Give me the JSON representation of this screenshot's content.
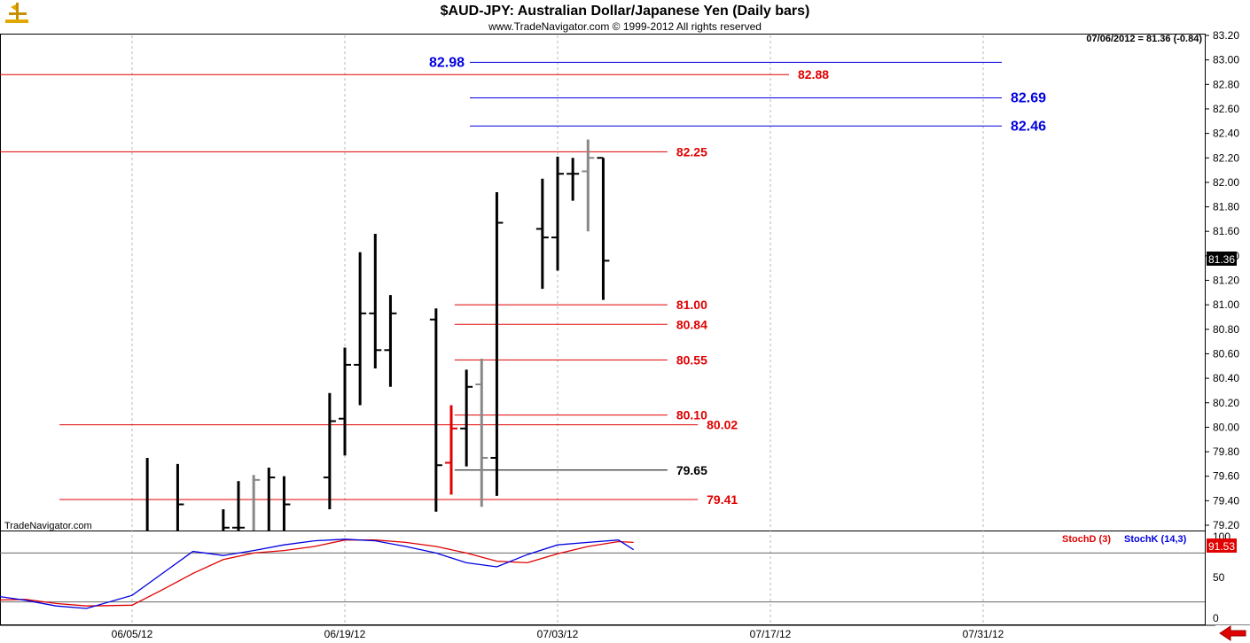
{
  "header": {
    "title": "$AUD-JPY:  Australian Dollar/Japanese Yen  (Daily bars)",
    "subtitle": "www.TradeNavigator.com © 1999-2012 All rights reserved",
    "last_quote": "07/06/2012 = 81.36 (-0.84)",
    "watermark": "TradeNavigator.com"
  },
  "colors": {
    "red": "#e00000",
    "blue": "#0000e0",
    "black": "#000000",
    "gray": "#888888",
    "grid": "#b8b8b8"
  },
  "icons": {
    "logo": "trading-post-icon",
    "scroll": "red-arrow-left-icon"
  },
  "chart_data": [
    {
      "type": "ohlc",
      "title": "$AUD-JPY:  Australian Dollar/Japanese Yen  (Daily bars)",
      "ylim": [
        79.1,
        83.25
      ],
      "y_ticks": [
        "83.20",
        "83.00",
        "82.80",
        "82.60",
        "82.40",
        "82.20",
        "82.00",
        "81.80",
        "81.60",
        "81.40",
        "81.20",
        "81.00",
        "80.80",
        "80.60",
        "80.40",
        "80.20",
        "80.00",
        "79.80",
        "79.60",
        "79.40",
        "79.20"
      ],
      "x_ticks": [
        "06/05/12",
        "06/19/12",
        "07/03/12",
        "07/17/12",
        "07/31/12"
      ],
      "last_price_label": "81.36",
      "bars": [
        {
          "date": "2012-06-06",
          "open": null,
          "high": 79.75,
          "low": 79.1,
          "close": null,
          "color": "black"
        },
        {
          "date": "2012-06-08",
          "open": null,
          "high": 79.7,
          "low": 79.1,
          "close": 79.37,
          "color": "black"
        },
        {
          "date": "2012-06-11",
          "open": null,
          "high": 79.33,
          "low": 79.1,
          "close": 79.18,
          "color": "black"
        },
        {
          "date": "2012-06-12",
          "open": 79.18,
          "high": 79.56,
          "low": 79.1,
          "close": 79.18,
          "color": "black"
        },
        {
          "date": "2012-06-13",
          "open": null,
          "high": 79.61,
          "low": 79.1,
          "close": 79.57,
          "color": "gray"
        },
        {
          "date": "2012-06-14",
          "open": null,
          "high": 79.67,
          "low": 79.1,
          "close": 79.59,
          "color": "black"
        },
        {
          "date": "2012-06-15",
          "open": null,
          "high": 79.6,
          "low": 79.1,
          "close": 79.37,
          "color": "black"
        },
        {
          "date": "2012-06-18",
          "open": 79.59,
          "high": 80.28,
          "low": 79.33,
          "close": 80.05,
          "color": "black"
        },
        {
          "date": "2012-06-19",
          "open": 80.07,
          "high": 80.65,
          "low": 79.77,
          "close": 80.51,
          "color": "black"
        },
        {
          "date": "2012-06-20",
          "open": 80.51,
          "high": 81.43,
          "low": 80.18,
          "close": 80.93,
          "color": "black"
        },
        {
          "date": "2012-06-21",
          "open": 80.93,
          "high": 81.58,
          "low": 80.48,
          "close": 80.63,
          "color": "black"
        },
        {
          "date": "2012-06-22",
          "open": 80.63,
          "high": 81.08,
          "low": 80.33,
          "close": 80.93,
          "color": "black"
        },
        {
          "date": "2012-06-25",
          "open": 80.88,
          "high": 80.97,
          "low": 79.31,
          "close": 79.69,
          "color": "black"
        },
        {
          "date": "2012-06-26",
          "open": 79.71,
          "high": 80.18,
          "low": 79.45,
          "close": 79.99,
          "color": "red"
        },
        {
          "date": "2012-06-27",
          "open": 79.99,
          "high": 80.47,
          "low": 79.68,
          "close": 80.33,
          "color": "black"
        },
        {
          "date": "2012-06-28",
          "open": 80.35,
          "high": 80.56,
          "low": 79.35,
          "close": 79.75,
          "color": "gray"
        },
        {
          "date": "2012-06-29",
          "open": 79.75,
          "high": 81.92,
          "low": 79.44,
          "close": 81.67,
          "color": "black"
        },
        {
          "date": "2012-07-02",
          "open": 81.62,
          "high": 82.03,
          "low": 81.13,
          "close": 81.55,
          "color": "black"
        },
        {
          "date": "2012-07-03",
          "open": 81.55,
          "high": 82.21,
          "low": 81.28,
          "close": 82.07,
          "color": "black"
        },
        {
          "date": "2012-07-04",
          "open": 82.07,
          "high": 82.2,
          "low": 81.85,
          "close": 82.07,
          "color": "black"
        },
        {
          "date": "2012-07-05",
          "open": 82.09,
          "high": 82.35,
          "low": 81.6,
          "close": 82.2,
          "color": "gray"
        },
        {
          "date": "2012-07-06",
          "open": 82.2,
          "high": 82.2,
          "low": 81.04,
          "close": 81.36,
          "color": "black"
        }
      ],
      "levels": [
        {
          "value": 82.98,
          "label": "82.98",
          "color": "blue",
          "label_side": "left",
          "from": "2012-06-26",
          "to": "2012-07-31"
        },
        {
          "value": 82.88,
          "label": "82.88",
          "color": "red",
          "label_side": "right",
          "from": "start",
          "to": "2012-07-17"
        },
        {
          "value": 82.69,
          "label": "82.69",
          "color": "blue",
          "label_side": "right",
          "from": "2012-06-26",
          "to": "2012-07-31"
        },
        {
          "value": 82.46,
          "label": "82.46",
          "color": "blue",
          "label_side": "right",
          "from": "2012-06-26",
          "to": "2012-07-31"
        },
        {
          "value": 82.25,
          "label": "82.25",
          "color": "red",
          "label_side": "right",
          "from": "start",
          "to": "2012-07-09"
        },
        {
          "value": 81.0,
          "label": "81.00",
          "color": "red",
          "label_side": "right",
          "from": "2012-06-25",
          "to": "2012-07-09"
        },
        {
          "value": 80.84,
          "label": "80.84",
          "color": "red",
          "label_side": "right",
          "from": "2012-06-25",
          "to": "2012-07-09"
        },
        {
          "value": 80.55,
          "label": "80.55",
          "color": "red",
          "label_side": "right",
          "from": "2012-06-25",
          "to": "2012-07-09"
        },
        {
          "value": 80.1,
          "label": "80.10",
          "color": "red",
          "label_side": "right",
          "from": "2012-06-25",
          "to": "2012-07-09"
        },
        {
          "value": 80.02,
          "label": "80.02",
          "color": "red",
          "label_side": "right",
          "from": "2012-05-30",
          "to": "2012-07-11"
        },
        {
          "value": 79.65,
          "label": "79.65",
          "color": "black",
          "label_side": "right",
          "from": "2012-06-25",
          "to": "2012-07-09"
        },
        {
          "value": 79.41,
          "label": "79.41",
          "color": "red",
          "label_side": "right",
          "from": "2012-05-30",
          "to": "2012-07-11"
        }
      ]
    },
    {
      "type": "line",
      "ylim": [
        -5,
        104
      ],
      "y_ticks": [
        "100",
        "50",
        "0"
      ],
      "reference_lines": [
        80,
        20
      ],
      "last_value_label": "91.53",
      "series": [
        {
          "name": "StochD (3)",
          "color": "red",
          "values": [
            [
              "2012-05-24",
              18
            ],
            [
              "2012-05-26",
              22
            ],
            [
              "2012-05-29",
              23
            ],
            [
              "2012-05-31",
              18
            ],
            [
              "2012-06-02",
              15
            ],
            [
              "2012-06-05",
              16
            ],
            [
              "2012-06-07",
              35
            ],
            [
              "2012-06-09",
              55
            ],
            [
              "2012-06-11",
              72
            ],
            [
              "2012-06-13",
              80
            ],
            [
              "2012-06-15",
              83
            ],
            [
              "2012-06-17",
              88
            ],
            [
              "2012-06-19",
              96
            ],
            [
              "2012-06-21",
              96
            ],
            [
              "2012-06-23",
              93
            ],
            [
              "2012-06-25",
              88
            ],
            [
              "2012-06-27",
              80
            ],
            [
              "2012-06-29",
              70
            ],
            [
              "2012-07-01",
              68
            ],
            [
              "2012-07-03",
              79
            ],
            [
              "2012-07-05",
              88
            ],
            [
              "2012-07-07",
              94
            ],
            [
              "2012-07-08",
              93
            ]
          ]
        },
        {
          "name": "StochK (14,3)",
          "color": "blue",
          "values": [
            [
              "2012-05-24",
              24
            ],
            [
              "2012-05-26",
              30
            ],
            [
              "2012-05-29",
              22
            ],
            [
              "2012-05-31",
              15
            ],
            [
              "2012-06-02",
              12
            ],
            [
              "2012-06-05",
              28
            ],
            [
              "2012-06-07",
              55
            ],
            [
              "2012-06-09",
              82
            ],
            [
              "2012-06-11",
              77
            ],
            [
              "2012-06-13",
              83
            ],
            [
              "2012-06-15",
              90
            ],
            [
              "2012-06-17",
              95
            ],
            [
              "2012-06-19",
              97
            ],
            [
              "2012-06-21",
              95
            ],
            [
              "2012-06-23",
              88
            ],
            [
              "2012-06-25",
              80
            ],
            [
              "2012-06-27",
              68
            ],
            [
              "2012-06-29",
              63
            ],
            [
              "2012-07-01",
              78
            ],
            [
              "2012-07-03",
              90
            ],
            [
              "2012-07-05",
              93
            ],
            [
              "2012-07-07",
              96
            ],
            [
              "2012-07-08",
              84
            ]
          ]
        }
      ]
    }
  ]
}
